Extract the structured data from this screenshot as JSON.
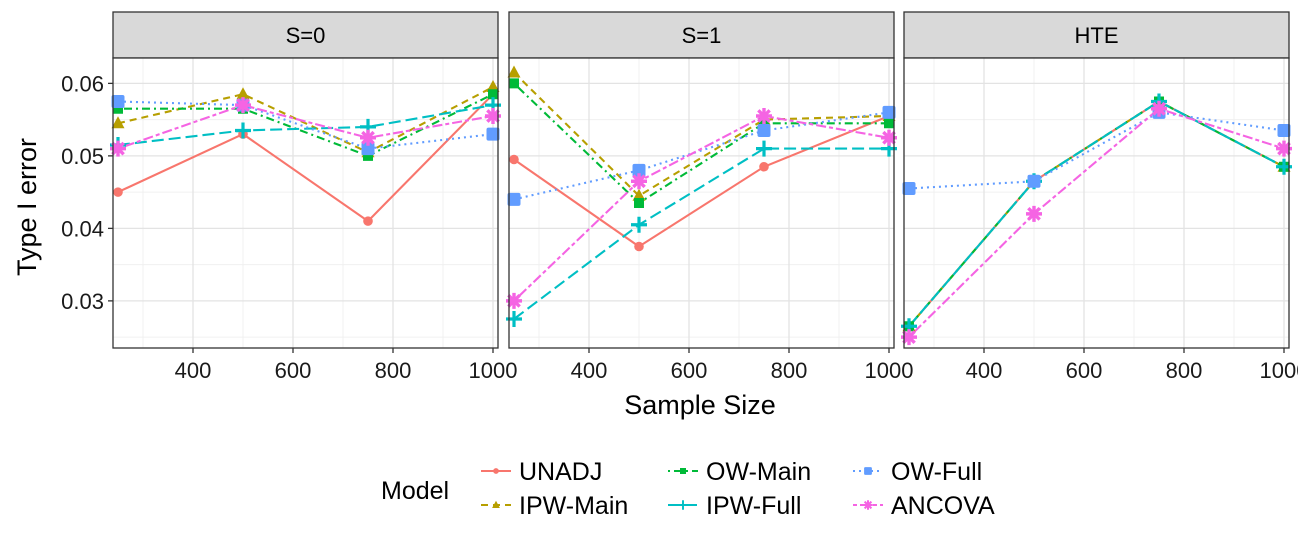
{
  "chart_data": {
    "type": "line",
    "facet_variable": "scenario",
    "xlabel": "Sample Size",
    "ylabel": "Type I error",
    "xlim": [
      240,
      1010
    ],
    "ylim": [
      0.0235,
      0.0635
    ],
    "x_ticks": [
      400,
      600,
      800,
      1000
    ],
    "y_ticks": [
      0.03,
      0.04,
      0.05,
      0.06
    ],
    "x_tick_labels": [
      "400",
      "600",
      "800",
      "1000"
    ],
    "y_tick_labels": [
      "0.03",
      "0.04",
      "0.05",
      "0.06"
    ],
    "x": [
      250,
      500,
      750,
      1000
    ],
    "legend": {
      "title": "Model",
      "position": "bottom",
      "entries": [
        "UNADJ",
        "IPW-Main",
        "OW-Main",
        "IPW-Full",
        "OW-Full",
        "ANCOVA"
      ]
    },
    "series_styles": [
      {
        "name": "UNADJ",
        "color": "#F8766D",
        "dash": "solid",
        "marker": "circle"
      },
      {
        "name": "IPW-Main",
        "color": "#B79F00",
        "dash": "dashed",
        "marker": "triangle"
      },
      {
        "name": "OW-Main",
        "color": "#00BA38",
        "dash": "dotdash",
        "marker": "square-small"
      },
      {
        "name": "IPW-Full",
        "color": "#00BFC4",
        "dash": "longdash",
        "marker": "plus"
      },
      {
        "name": "OW-Full",
        "color": "#619CFF",
        "dash": "dotted",
        "marker": "square"
      },
      {
        "name": "ANCOVA",
        "color": "#F564E3",
        "dash": "twodash",
        "marker": "asterisk"
      }
    ],
    "panels": [
      {
        "title": "S=0",
        "series": [
          {
            "name": "UNADJ",
            "values": [
              0.045,
              0.053,
              0.041,
              0.0585
            ]
          },
          {
            "name": "IPW-Main",
            "values": [
              0.0545,
              0.0585,
              0.0505,
              0.0595
            ]
          },
          {
            "name": "OW-Main",
            "values": [
              0.0565,
              0.0565,
              0.05,
              0.0585
            ]
          },
          {
            "name": "IPW-Full",
            "values": [
              0.0515,
              0.0535,
              0.054,
              0.057
            ]
          },
          {
            "name": "OW-Full",
            "values": [
              0.0575,
              0.057,
              0.051,
              0.053
            ]
          },
          {
            "name": "ANCOVA",
            "values": [
              0.051,
              0.057,
              0.0525,
              0.0555
            ]
          }
        ]
      },
      {
        "title": "S=1",
        "series": [
          {
            "name": "UNADJ",
            "values": [
              0.0495,
              0.0375,
              0.0485,
              0.0555
            ]
          },
          {
            "name": "IPW-Main",
            "values": [
              0.0615,
              0.0445,
              0.055,
              0.0555
            ]
          },
          {
            "name": "OW-Main",
            "values": [
              0.06,
              0.0435,
              0.0545,
              0.0545
            ]
          },
          {
            "name": "IPW-Full",
            "values": [
              0.0275,
              0.0405,
              0.051,
              0.051
            ]
          },
          {
            "name": "OW-Full",
            "values": [
              0.044,
              0.048,
              0.0535,
              0.056
            ]
          },
          {
            "name": "ANCOVA",
            "values": [
              0.03,
              0.0465,
              0.0555,
              0.0525
            ]
          }
        ]
      },
      {
        "title": "HTE",
        "series": [
          {
            "name": "UNADJ",
            "values": [
              0.0265,
              0.0465,
              0.0575,
              0.0485
            ]
          },
          {
            "name": "IPW-Main",
            "values": [
              0.0265,
              0.0465,
              0.0575,
              0.0485
            ]
          },
          {
            "name": "OW-Main",
            "values": [
              0.0265,
              0.0465,
              0.0575,
              0.0485
            ]
          },
          {
            "name": "IPW-Full",
            "values": [
              0.0265,
              0.0465,
              0.0575,
              0.0485
            ]
          },
          {
            "name": "OW-Full",
            "values": [
              0.0455,
              0.0465,
              0.056,
              0.0535
            ]
          },
          {
            "name": "ANCOVA",
            "values": [
              0.025,
              0.042,
              0.0565,
              0.051
            ]
          }
        ]
      }
    ]
  }
}
